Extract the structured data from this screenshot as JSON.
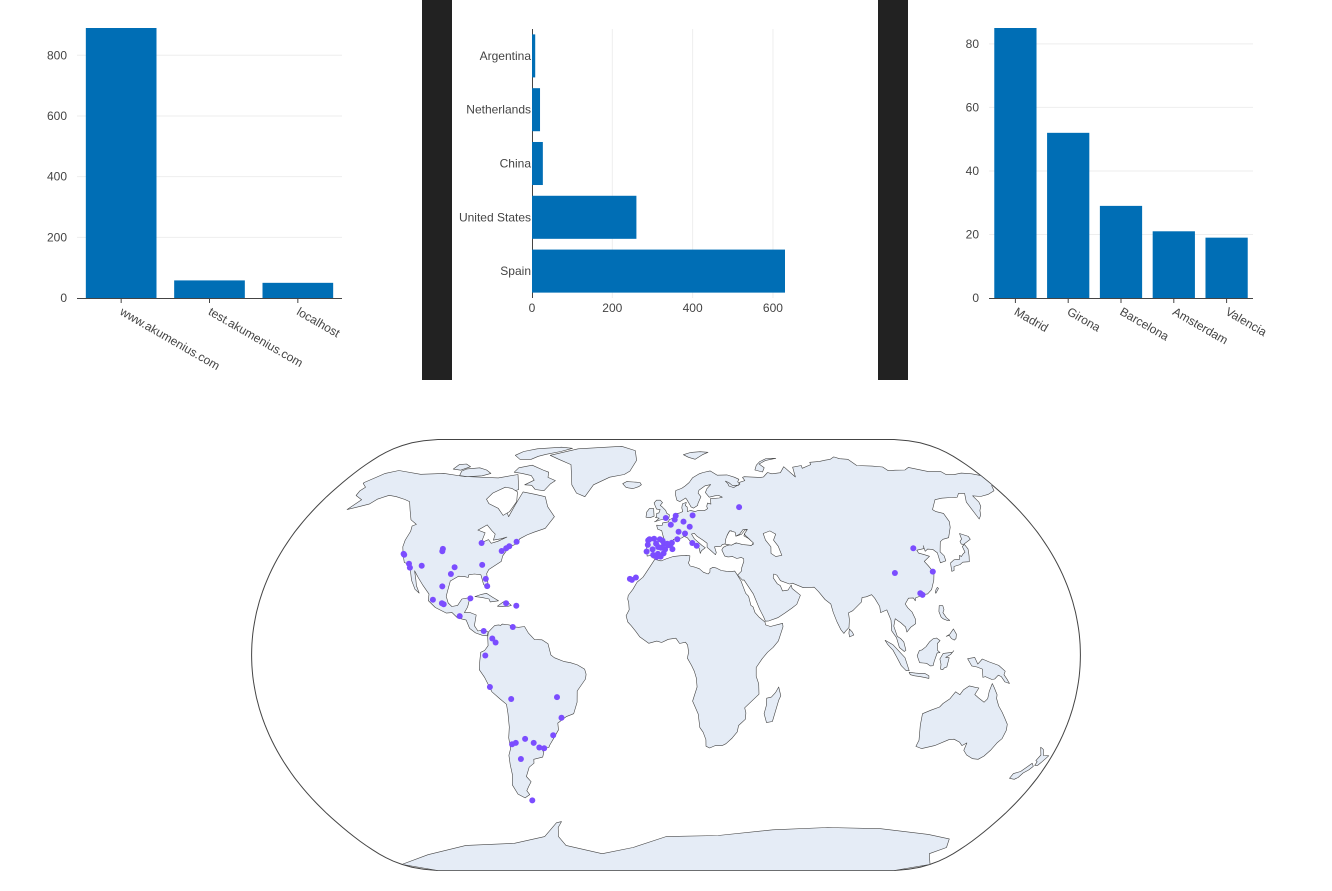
{
  "colors": {
    "bar": "#006eb5",
    "point": "#7b4dff",
    "land": "#e5ecf6",
    "coast": "#444444",
    "separator": "#222222"
  },
  "chart_data": [
    {
      "type": "bar",
      "orientation": "vertical",
      "categories": [
        "www.akumenius.com",
        "test.akumenius.com",
        "localhost"
      ],
      "values": [
        890,
        58,
        50
      ],
      "yticks": [
        0,
        200,
        400,
        600,
        800
      ],
      "ylim": [
        0,
        890
      ],
      "tick_angle": 30,
      "grid": true
    },
    {
      "type": "bar",
      "orientation": "horizontal",
      "categories": [
        "Argentina",
        "Netherlands",
        "China",
        "United States",
        "Spain"
      ],
      "values": [
        8,
        20,
        27,
        260,
        630
      ],
      "xticks": [
        0,
        200,
        400,
        600
      ],
      "xlim": [
        0,
        630
      ],
      "grid": true
    },
    {
      "type": "bar",
      "orientation": "vertical",
      "categories": [
        "Madrid",
        "Girona",
        "Barcelona",
        "Amsterdam",
        "Valencia"
      ],
      "values": [
        85,
        52,
        29,
        21,
        19
      ],
      "yticks": [
        0,
        20,
        40,
        60,
        80
      ],
      "ylim": [
        0,
        85
      ],
      "tick_angle": 30,
      "grid": true
    },
    {
      "type": "scatter",
      "projection": "natural-earth",
      "points": [
        {
          "lon": -122.4,
          "lat": 37.8
        },
        {
          "lon": -122.0,
          "lat": 37.5
        },
        {
          "lon": -118.2,
          "lat": 34.1
        },
        {
          "lon": -117.2,
          "lat": 32.7
        },
        {
          "lon": -112.1,
          "lat": 33.4
        },
        {
          "lon": -104.9,
          "lat": 39.7
        },
        {
          "lon": -104.8,
          "lat": 38.8
        },
        {
          "lon": -97.7,
          "lat": 30.3
        },
        {
          "lon": -96.8,
          "lat": 32.8
        },
        {
          "lon": -87.6,
          "lat": 41.9
        },
        {
          "lon": -84.4,
          "lat": 33.7
        },
        {
          "lon": -80.2,
          "lat": 25.8
        },
        {
          "lon": -81.4,
          "lat": 28.5
        },
        {
          "lon": -77.0,
          "lat": 38.9
        },
        {
          "lon": -74.0,
          "lat": 40.7
        },
        {
          "lon": -75.2,
          "lat": 39.9
        },
        {
          "lon": -71.1,
          "lat": 42.4
        },
        {
          "lon": -103.3,
          "lat": 20.7
        },
        {
          "lon": -99.1,
          "lat": 19.4
        },
        {
          "lon": -100.3,
          "lat": 25.7
        },
        {
          "lon": -98.2,
          "lat": 19.0
        },
        {
          "lon": -86.8,
          "lat": 21.2
        },
        {
          "lon": -90.5,
          "lat": 14.6
        },
        {
          "lon": -79.5,
          "lat": 9.0
        },
        {
          "lon": -66.1,
          "lat": 18.5
        },
        {
          "lon": -70.7,
          "lat": 19.4
        },
        {
          "lon": -74.1,
          "lat": 4.7
        },
        {
          "lon": -75.6,
          "lat": 6.2
        },
        {
          "lon": -66.9,
          "lat": 10.5
        },
        {
          "lon": -78.5,
          "lat": -0.2
        },
        {
          "lon": -77.0,
          "lat": -12.0
        },
        {
          "lon": -68.1,
          "lat": -16.5
        },
        {
          "lon": -47.9,
          "lat": -15.8
        },
        {
          "lon": -46.6,
          "lat": -23.5
        },
        {
          "lon": -51.2,
          "lat": -30.0
        },
        {
          "lon": -56.2,
          "lat": -34.9
        },
        {
          "lon": -58.4,
          "lat": -34.6
        },
        {
          "lon": -60.6,
          "lat": -32.9
        },
        {
          "lon": -64.2,
          "lat": -31.4
        },
        {
          "lon": -70.6,
          "lat": -33.4
        },
        {
          "lon": -68.8,
          "lat": -32.9
        },
        {
          "lon": -68.3,
          "lat": -54.8
        },
        {
          "lon": -68.0,
          "lat": -38.9
        },
        {
          "lon": -3.7,
          "lat": 40.4
        },
        {
          "lon": 2.2,
          "lat": 41.4
        },
        {
          "lon": 2.8,
          "lat": 42.0
        },
        {
          "lon": -0.4,
          "lat": 39.5
        },
        {
          "lon": -5.98,
          "lat": 37.4
        },
        {
          "lon": -8.5,
          "lat": 42.9
        },
        {
          "lon": -2.9,
          "lat": 43.3
        },
        {
          "lon": -4.4,
          "lat": 36.7
        },
        {
          "lon": -1.6,
          "lat": 42.8
        },
        {
          "lon": -0.9,
          "lat": 41.6
        },
        {
          "lon": -1.1,
          "lat": 38.0
        },
        {
          "lon": -5.7,
          "lat": 43.5
        },
        {
          "lon": -4.7,
          "lat": 41.7
        },
        {
          "lon": 1.2,
          "lat": 41.1
        },
        {
          "lon": 3.0,
          "lat": 39.6
        },
        {
          "lon": -6.3,
          "lat": 39.5
        },
        {
          "lon": -7.9,
          "lat": 43.3
        },
        {
          "lon": -3.8,
          "lat": 37.8
        },
        {
          "lon": -2.5,
          "lat": 36.8
        },
        {
          "lon": 0.6,
          "lat": 41.6
        },
        {
          "lon": -9.1,
          "lat": 38.7
        },
        {
          "lon": -8.6,
          "lat": 41.2
        },
        {
          "lon": -2.3,
          "lat": 40.1
        },
        {
          "lon": -15.4,
          "lat": 28.1
        },
        {
          "lon": -16.3,
          "lat": 28.5
        },
        {
          "lon": -13.6,
          "lat": 29.0
        },
        {
          "lon": -0.1,
          "lat": 51.5
        },
        {
          "lon": 2.35,
          "lat": 48.9
        },
        {
          "lon": 4.9,
          "lat": 52.4
        },
        {
          "lon": 4.35,
          "lat": 50.85
        },
        {
          "lon": 8.7,
          "lat": 50.1
        },
        {
          "lon": 13.4,
          "lat": 52.5
        },
        {
          "lon": 11.6,
          "lat": 48.1
        },
        {
          "lon": 9.2,
          "lat": 45.5
        },
        {
          "lon": 12.5,
          "lat": 41.9
        },
        {
          "lon": 6.1,
          "lat": 46.2
        },
        {
          "lon": 5.4,
          "lat": 43.3
        },
        {
          "lon": 14.5,
          "lat": 40.9
        },
        {
          "lon": 37.6,
          "lat": 55.8
        },
        {
          "lon": 116.4,
          "lat": 39.9
        },
        {
          "lon": 121.5,
          "lat": 31.2
        },
        {
          "lon": 113.3,
          "lat": 23.1
        },
        {
          "lon": 114.1,
          "lat": 22.5
        },
        {
          "lon": 104.1,
          "lat": 30.7
        }
      ]
    }
  ]
}
